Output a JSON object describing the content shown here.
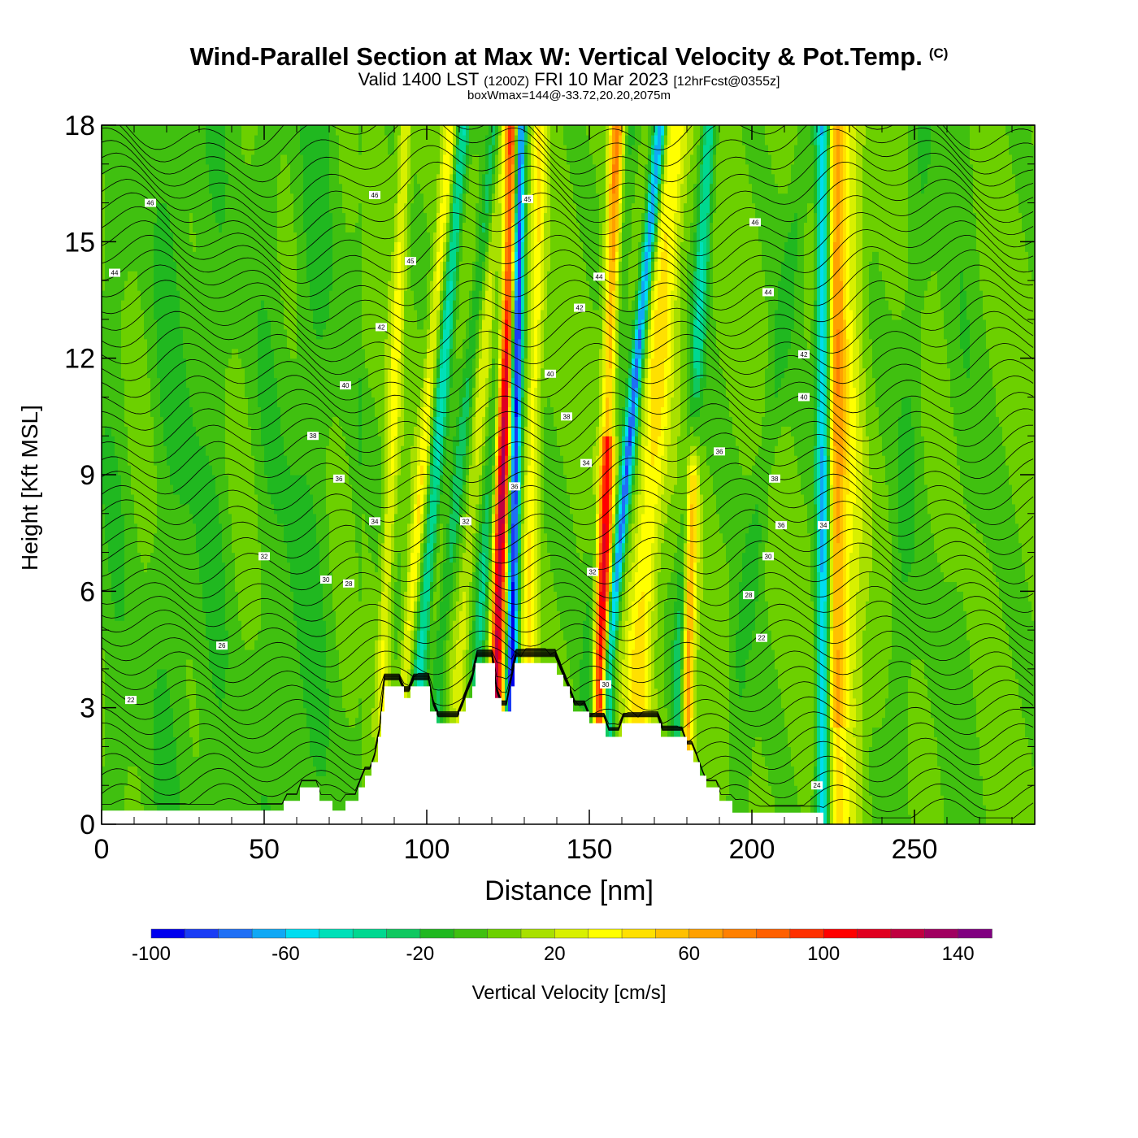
{
  "title": {
    "main": "Wind-Parallel Section at Max W: Vertical Velocity & Pot.Temp.",
    "copyright": "(C)",
    "valid_prefix": "Valid 1400 LST",
    "valid_utc": "(1200Z)",
    "valid_date": "FRI 10 Mar 2023",
    "forecast": "[12hrFcst@0355z]",
    "box_info": "boxWmax=144@-33.72,20.20,2075m"
  },
  "chart_data": {
    "type": "heatmap",
    "xlabel": "Distance [nm]",
    "ylabel": "Height [Kft MSL]",
    "xlim": [
      0,
      287
    ],
    "ylim": [
      0,
      18
    ],
    "x_ticks": [
      "0",
      "50",
      "100",
      "150",
      "200",
      "250"
    ],
    "y_ticks": [
      "0",
      "3",
      "6",
      "9",
      "12",
      "15",
      "18"
    ],
    "colorbar": {
      "label": "Vertical Velocity [cm/s]",
      "tick_labels": [
        "-100",
        "-60",
        "-20",
        "20",
        "60",
        "100",
        "140"
      ],
      "levels": [
        -100,
        -90,
        -80,
        -70,
        -60,
        -50,
        -40,
        -30,
        -20,
        -10,
        0,
        10,
        20,
        30,
        40,
        50,
        60,
        70,
        80,
        90,
        100,
        110,
        120,
        130,
        140,
        150
      ],
      "colors": [
        "#0000ee",
        "#1a3cf5",
        "#1f6ff5",
        "#10a8f5",
        "#00ddf0",
        "#00e0b8",
        "#00d890",
        "#10c860",
        "#20b820",
        "#40c010",
        "#6cd000",
        "#a8e000",
        "#d8f000",
        "#ffff00",
        "#ffe000",
        "#ffc000",
        "#ffa000",
        "#ff8000",
        "#ff6000",
        "#ff3000",
        "#ff0000",
        "#e00020",
        "#c00040",
        "#a00060",
        "#800080"
      ]
    },
    "terrain_kft": [
      [
        0,
        0.35
      ],
      [
        56,
        0.35
      ],
      [
        56,
        0.6
      ],
      [
        61,
        0.6
      ],
      [
        61,
        0.95
      ],
      [
        67,
        0.95
      ],
      [
        67,
        0.6
      ],
      [
        71,
        0.6
      ],
      [
        71,
        0.35
      ],
      [
        75,
        0.35
      ],
      [
        75,
        0.6
      ],
      [
        79,
        0.6
      ],
      [
        79,
        0.95
      ],
      [
        81,
        0.95
      ],
      [
        81,
        1.25
      ],
      [
        83,
        1.25
      ],
      [
        83,
        1.6
      ],
      [
        85,
        1.6
      ],
      [
        85,
        2.25
      ],
      [
        86,
        2.25
      ],
      [
        86,
        2.9
      ],
      [
        87,
        2.9
      ],
      [
        87,
        3.55
      ],
      [
        93,
        3.55
      ],
      [
        93,
        3.25
      ],
      [
        95,
        3.25
      ],
      [
        95,
        3.55
      ],
      [
        101,
        3.55
      ],
      [
        101,
        2.9
      ],
      [
        103,
        2.9
      ],
      [
        103,
        2.6
      ],
      [
        110,
        2.6
      ],
      [
        110,
        2.9
      ],
      [
        112,
        2.9
      ],
      [
        112,
        3.25
      ],
      [
        114,
        3.25
      ],
      [
        114,
        3.55
      ],
      [
        115,
        3.55
      ],
      [
        115,
        4.15
      ],
      [
        121,
        4.15
      ],
      [
        121,
        3.25
      ],
      [
        123,
        3.25
      ],
      [
        123,
        2.9
      ],
      [
        126,
        2.9
      ],
      [
        126,
        3.55
      ],
      [
        127,
        3.55
      ],
      [
        127,
        4.15
      ],
      [
        140,
        4.15
      ],
      [
        140,
        3.85
      ],
      [
        142,
        3.85
      ],
      [
        142,
        3.55
      ],
      [
        144,
        3.55
      ],
      [
        144,
        3.25
      ],
      [
        145,
        3.25
      ],
      [
        145,
        2.9
      ],
      [
        150,
        2.9
      ],
      [
        150,
        2.6
      ],
      [
        155,
        2.6
      ],
      [
        155,
        2.25
      ],
      [
        160,
        2.25
      ],
      [
        160,
        2.6
      ],
      [
        172,
        2.6
      ],
      [
        172,
        2.25
      ],
      [
        180,
        2.25
      ],
      [
        180,
        1.9
      ],
      [
        182,
        1.9
      ],
      [
        182,
        1.6
      ],
      [
        184,
        1.6
      ],
      [
        184,
        1.25
      ],
      [
        186,
        1.25
      ],
      [
        186,
        0.95
      ],
      [
        190,
        0.95
      ],
      [
        190,
        0.6
      ],
      [
        194,
        0.6
      ],
      [
        194,
        0.3
      ],
      [
        222,
        0.3
      ],
      [
        222,
        0.0
      ],
      [
        287,
        0.0
      ]
    ],
    "theta_contour_labels": [
      {
        "x": 15,
        "y": 16.0,
        "text": "46"
      },
      {
        "x": 4,
        "y": 14.2,
        "text": "44"
      },
      {
        "x": 84,
        "y": 16.2,
        "text": "46"
      },
      {
        "x": 95,
        "y": 14.5,
        "text": "45"
      },
      {
        "x": 86,
        "y": 12.8,
        "text": "42"
      },
      {
        "x": 75,
        "y": 11.3,
        "text": "40"
      },
      {
        "x": 65,
        "y": 10.0,
        "text": "38"
      },
      {
        "x": 73,
        "y": 8.9,
        "text": "36"
      },
      {
        "x": 84,
        "y": 7.8,
        "text": "34"
      },
      {
        "x": 112,
        "y": 7.8,
        "text": "32"
      },
      {
        "x": 50,
        "y": 6.9,
        "text": "32"
      },
      {
        "x": 69,
        "y": 6.3,
        "text": "30"
      },
      {
        "x": 76,
        "y": 6.2,
        "text": "28"
      },
      {
        "x": 37,
        "y": 4.6,
        "text": "26"
      },
      {
        "x": 9,
        "y": 3.2,
        "text": "22"
      },
      {
        "x": 131,
        "y": 16.1,
        "text": "45"
      },
      {
        "x": 153,
        "y": 14.1,
        "text": "44"
      },
      {
        "x": 147,
        "y": 13.3,
        "text": "42"
      },
      {
        "x": 138,
        "y": 11.6,
        "text": "40"
      },
      {
        "x": 143,
        "y": 10.5,
        "text": "38"
      },
      {
        "x": 149,
        "y": 9.3,
        "text": "34"
      },
      {
        "x": 127,
        "y": 8.7,
        "text": "36"
      },
      {
        "x": 151,
        "y": 6.5,
        "text": "32"
      },
      {
        "x": 155,
        "y": 3.6,
        "text": "30"
      },
      {
        "x": 201,
        "y": 15.5,
        "text": "46"
      },
      {
        "x": 205,
        "y": 13.7,
        "text": "44"
      },
      {
        "x": 216,
        "y": 12.1,
        "text": "42"
      },
      {
        "x": 216,
        "y": 11.0,
        "text": "40"
      },
      {
        "x": 190,
        "y": 9.6,
        "text": "36"
      },
      {
        "x": 207,
        "y": 8.9,
        "text": "38"
      },
      {
        "x": 209,
        "y": 7.7,
        "text": "36"
      },
      {
        "x": 222,
        "y": 7.7,
        "text": "34"
      },
      {
        "x": 205,
        "y": 6.9,
        "text": "30"
      },
      {
        "x": 199,
        "y": 5.9,
        "text": "28"
      },
      {
        "x": 203,
        "y": 4.8,
        "text": "22"
      },
      {
        "x": 220,
        "y": 1.0,
        "text": "24"
      }
    ]
  }
}
